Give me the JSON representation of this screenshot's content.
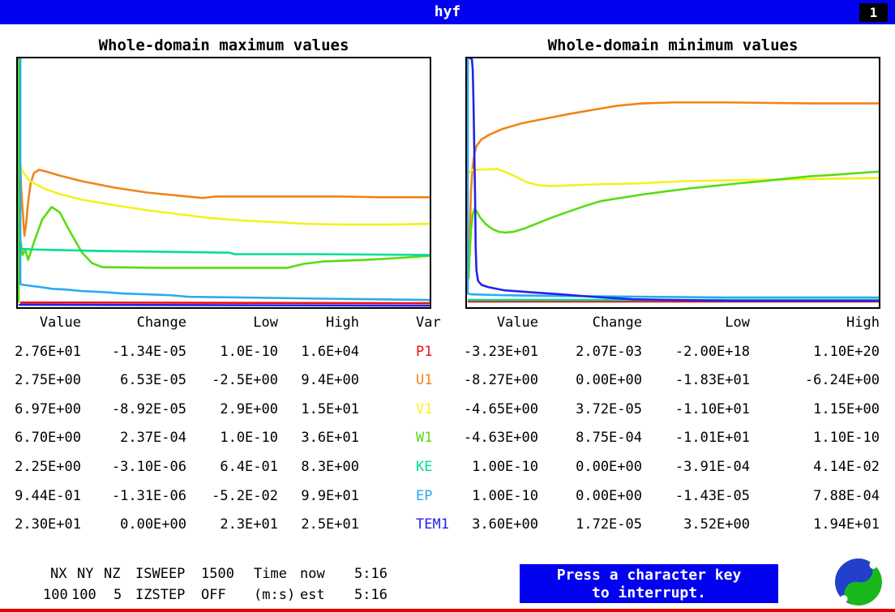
{
  "title_bar": {
    "title": "hyf",
    "page_indicator": "1"
  },
  "charts": [
    {
      "title": "Whole-domain maximum values"
    },
    {
      "title": "Whole-domain minimum values"
    }
  ],
  "table_headers": [
    "Value",
    "Change",
    "Low",
    "High"
  ],
  "var_header": "Var",
  "variables": [
    {
      "name": "P1",
      "color": "#ee1111"
    },
    {
      "name": "U1",
      "color": "#f08418"
    },
    {
      "name": "V1",
      "color": "#f2f21c"
    },
    {
      "name": "W1",
      "color": "#55dd11"
    },
    {
      "name": "KE",
      "color": "#00dd94"
    },
    {
      "name": "EP",
      "color": "#28aaf0"
    },
    {
      "name": "TEM1",
      "color": "#2222ee"
    }
  ],
  "max_table": {
    "rows": [
      [
        "2.76E+01",
        "-1.34E-05",
        "1.0E-10",
        "1.6E+04"
      ],
      [
        "2.75E+00",
        "6.53E-05",
        "-2.5E+00",
        "9.4E+00"
      ],
      [
        "6.97E+00",
        "-8.92E-05",
        "2.9E+00",
        "1.5E+01"
      ],
      [
        "6.70E+00",
        "2.37E-04",
        "1.0E-10",
        "3.6E+01"
      ],
      [
        "2.25E+00",
        "-3.10E-06",
        "6.4E-01",
        "8.3E+00"
      ],
      [
        "9.44E-01",
        "-1.31E-06",
        "-5.2E-02",
        "9.9E+01"
      ],
      [
        "2.30E+01",
        "0.00E+00",
        "2.3E+01",
        "2.5E+01"
      ]
    ]
  },
  "min_table": {
    "rows": [
      [
        "-3.23E+01",
        "2.07E-03",
        "-2.00E+18",
        "1.10E+20"
      ],
      [
        "-8.27E+00",
        "0.00E+00",
        "-1.83E+01",
        "-6.24E+00"
      ],
      [
        "-4.65E+00",
        "3.72E-05",
        "-1.10E+01",
        "1.15E+00"
      ],
      [
        "-4.63E+00",
        "8.75E-04",
        "-1.01E+01",
        "1.10E-10"
      ],
      [
        "1.00E-10",
        "0.00E+00",
        "-3.91E-04",
        "4.14E-02"
      ],
      [
        "1.00E-10",
        "0.00E+00",
        "-1.43E-05",
        "7.88E-04"
      ],
      [
        "3.60E+00",
        "1.72E-05",
        "3.52E+00",
        "1.94E+01"
      ]
    ]
  },
  "status": {
    "nx_label": "NX",
    "ny_label": "NY",
    "nz_label": "NZ",
    "isweep_label": "ISWEEP",
    "isweep_value": "1500",
    "time_label": "Time",
    "now_label": "now",
    "time_now": "5:16",
    "nx_value": "100",
    "ny_value": "100",
    "nz_value": "5",
    "izstep_label": "IZSTEP",
    "izstep_value": "OFF",
    "ms_label": "(m:s)",
    "est_label": "est",
    "time_est": "5:16"
  },
  "interrupt_box": {
    "line1": "Press a character key",
    "line2": "to interrupt."
  },
  "colors": {
    "titlebar_bg": "#0202ee",
    "interrupt_bg": "#0202f0",
    "bottom_line": "#e60000",
    "logo_blue": "#2240cc",
    "logo_green": "#18b81c"
  },
  "chart_data": [
    {
      "type": "line",
      "title": "Whole-domain maximum values",
      "note": "each variable normalized to its own 0-1 range; x = sweep history; fractions of plot area (y=0 top)",
      "series": [
        {
          "name": "P1",
          "color": "#ee1111",
          "segments": [
            [
              [
                0.008,
                0.981
              ],
              [
                0.998,
                0.984
              ]
            ]
          ]
        },
        {
          "name": "U1",
          "color": "#f08418",
          "segments": [
            [
              [
                0.006,
                0.432
              ],
              [
                0.008,
                0.519
              ],
              [
                0.012,
                0.616
              ],
              [
                0.016,
                0.713
              ],
              [
                0.02,
                0.668
              ],
              [
                0.025,
                0.577
              ],
              [
                0.031,
                0.503
              ],
              [
                0.039,
                0.461
              ],
              [
                0.051,
                0.448
              ],
              [
                0.07,
                0.455
              ],
              [
                0.102,
                0.471
              ],
              [
                0.156,
                0.494
              ],
              [
                0.234,
                0.519
              ],
              [
                0.313,
                0.539
              ],
              [
                0.391,
                0.552
              ],
              [
                0.449,
                0.561
              ],
              [
                0.479,
                0.555
              ],
              [
                0.547,
                0.555
              ],
              [
                0.664,
                0.555
              ],
              [
                0.781,
                0.555
              ],
              [
                0.879,
                0.558
              ],
              [
                0.998,
                0.558
              ]
            ]
          ]
        },
        {
          "name": "V1",
          "color": "#f2f21c",
          "segments": [
            [
              [
                0.002,
                0.413
              ],
              [
                0.012,
                0.455
              ],
              [
                0.027,
                0.49
              ],
              [
                0.063,
                0.523
              ],
              [
                0.102,
                0.545
              ],
              [
                0.156,
                0.568
              ],
              [
                0.234,
                0.59
              ],
              [
                0.313,
                0.61
              ],
              [
                0.391,
                0.626
              ],
              [
                0.469,
                0.642
              ],
              [
                0.547,
                0.652
              ],
              [
                0.625,
                0.658
              ],
              [
                0.703,
                0.665
              ],
              [
                0.801,
                0.668
              ],
              [
                0.898,
                0.668
              ],
              [
                0.998,
                0.665
              ]
            ]
          ]
        },
        {
          "name": "W1",
          "color": "#55dd11",
          "segments": [
            [
              [
                0.002,
                0.0
              ],
              [
                0.002,
                0.977
              ]
            ],
            [
              [
                0.004,
                0.706
              ],
              [
                0.012,
                0.79
              ],
              [
                0.018,
                0.768
              ],
              [
                0.025,
                0.81
              ],
              [
                0.039,
                0.739
              ],
              [
                0.059,
                0.648
              ],
              [
                0.082,
                0.597
              ],
              [
                0.102,
                0.619
              ],
              [
                0.127,
                0.697
              ],
              [
                0.156,
                0.781
              ],
              [
                0.18,
                0.823
              ],
              [
                0.205,
                0.839
              ],
              [
                0.352,
                0.842
              ],
              [
                0.547,
                0.842
              ],
              [
                0.654,
                0.842
              ],
              [
                0.693,
                0.826
              ],
              [
                0.742,
                0.816
              ],
              [
                0.84,
                0.81
              ],
              [
                0.918,
                0.803
              ],
              [
                0.998,
                0.794
              ]
            ]
          ]
        },
        {
          "name": "KE",
          "color": "#00dd94",
          "segments": [
            [
              [
                0.004,
                0.765
              ],
              [
                0.039,
                0.768
              ],
              [
                0.195,
                0.774
              ],
              [
                0.352,
                0.777
              ],
              [
                0.514,
                0.781
              ],
              [
                0.527,
                0.787
              ],
              [
                0.742,
                0.787
              ],
              [
                0.998,
                0.79
              ]
            ]
          ]
        },
        {
          "name": "EP",
          "color": "#28aaf0",
          "segments": [
            [
              [
                0.006,
                0.0
              ],
              [
                0.006,
                0.906
              ],
              [
                0.012,
                0.91
              ],
              [
                0.025,
                0.913
              ],
              [
                0.055,
                0.919
              ],
              [
                0.084,
                0.926
              ],
              [
                0.117,
                0.929
              ],
              [
                0.156,
                0.935
              ],
              [
                0.205,
                0.939
              ],
              [
                0.254,
                0.945
              ],
              [
                0.313,
                0.948
              ],
              [
                0.371,
                0.952
              ],
              [
                0.416,
                0.958
              ],
              [
                0.547,
                0.961
              ],
              [
                0.703,
                0.965
              ],
              [
                0.859,
                0.968
              ],
              [
                0.998,
                0.971
              ]
            ]
          ]
        },
        {
          "name": "TEM1",
          "color": "#2222ee",
          "segments": [
            [
              [
                0.004,
                0.99
              ],
              [
                0.998,
                0.994
              ]
            ]
          ]
        }
      ]
    },
    {
      "type": "line",
      "title": "Whole-domain minimum values",
      "note": "each variable normalized to its own 0-1 range; x = sweep history; fractions of plot area (y=0 top)",
      "series": [
        {
          "name": "P1",
          "color": "#ee1111",
          "segments": [
            [
              [
                0.004,
                0.977
              ],
              [
                1.0,
                0.977
              ]
            ]
          ]
        },
        {
          "name": "U1",
          "color": "#f08418",
          "segments": [
            [
              [
                0.006,
                0.777
              ],
              [
                0.008,
                0.642
              ],
              [
                0.01,
                0.529
              ],
              [
                0.014,
                0.432
              ],
              [
                0.018,
                0.384
              ],
              [
                0.023,
                0.352
              ],
              [
                0.035,
                0.326
              ],
              [
                0.055,
                0.306
              ],
              [
                0.086,
                0.284
              ],
              [
                0.133,
                0.261
              ],
              [
                0.191,
                0.242
              ],
              [
                0.25,
                0.223
              ],
              [
                0.309,
                0.206
              ],
              [
                0.367,
                0.19
              ],
              [
                0.426,
                0.181
              ],
              [
                0.5,
                0.177
              ],
              [
                0.637,
                0.177
              ],
              [
                0.832,
                0.181
              ],
              [
                1.0,
                0.181
              ]
            ]
          ]
        },
        {
          "name": "V1",
          "color": "#f2f21c",
          "segments": [
            [
              [
                0.006,
                0.458
              ],
              [
                0.014,
                0.448
              ],
              [
                0.074,
                0.445
              ],
              [
                0.086,
                0.452
              ],
              [
                0.113,
                0.471
              ],
              [
                0.145,
                0.497
              ],
              [
                0.172,
                0.51
              ],
              [
                0.211,
                0.513
              ],
              [
                0.256,
                0.51
              ],
              [
                0.314,
                0.506
              ],
              [
                0.412,
                0.503
              ],
              [
                0.52,
                0.494
              ],
              [
                0.637,
                0.49
              ],
              [
                0.754,
                0.487
              ],
              [
                0.871,
                0.484
              ],
              [
                1.0,
                0.481
              ]
            ]
          ]
        },
        {
          "name": "W1",
          "color": "#55dd11",
          "segments": [
            [
              [
                0.002,
                0.003
              ],
              [
                0.002,
                0.035
              ]
            ],
            [
              [
                0.004,
                0.884
              ],
              [
                0.006,
                0.803
              ],
              [
                0.01,
                0.69
              ],
              [
                0.014,
                0.626
              ],
              [
                0.018,
                0.606
              ],
              [
                0.023,
                0.613
              ],
              [
                0.033,
                0.642
              ],
              [
                0.047,
                0.668
              ],
              [
                0.063,
                0.687
              ],
              [
                0.078,
                0.697
              ],
              [
                0.094,
                0.7
              ],
              [
                0.113,
                0.697
              ],
              [
                0.139,
                0.684
              ],
              [
                0.168,
                0.665
              ],
              [
                0.207,
                0.639
              ],
              [
                0.246,
                0.616
              ],
              [
                0.285,
                0.594
              ],
              [
                0.324,
                0.574
              ],
              [
                0.373,
                0.561
              ],
              [
                0.422,
                0.548
              ],
              [
                0.48,
                0.535
              ],
              [
                0.539,
                0.523
              ],
              [
                0.598,
                0.513
              ],
              [
                0.656,
                0.503
              ],
              [
                0.715,
                0.494
              ],
              [
                0.773,
                0.484
              ],
              [
                0.832,
                0.474
              ],
              [
                0.891,
                0.468
              ],
              [
                0.949,
                0.461
              ],
              [
                1.0,
                0.455
              ]
            ]
          ]
        },
        {
          "name": "KE",
          "color": "#00dd94",
          "segments": [
            [
              [
                0.004,
                0.971
              ],
              [
                1.0,
                0.971
              ]
            ]
          ]
        },
        {
          "name": "EP",
          "color": "#28aaf0",
          "segments": [
            [
              [
                0.002,
                0.0
              ],
              [
                0.002,
                0.945
              ],
              [
                0.008,
                0.948
              ],
              [
                0.09,
                0.952
              ],
              [
                0.246,
                0.955
              ],
              [
                0.441,
                0.958
              ],
              [
                0.637,
                0.961
              ],
              [
                1.0,
                0.961
              ]
            ]
          ]
        },
        {
          "name": "TEM1",
          "color": "#2222ee",
          "segments": [
            [
              [
                0.008,
                0.0
              ],
              [
                0.012,
                0.003
              ],
              [
                0.014,
                0.045
              ],
              [
                0.016,
                0.19
              ],
              [
                0.018,
                0.384
              ],
              [
                0.02,
                0.577
              ],
              [
                0.021,
                0.755
              ],
              [
                0.023,
                0.852
              ],
              [
                0.027,
                0.894
              ],
              [
                0.035,
                0.91
              ],
              [
                0.051,
                0.919
              ],
              [
                0.09,
                0.932
              ],
              [
                0.148,
                0.939
              ],
              [
                0.227,
                0.948
              ],
              [
                0.305,
                0.958
              ],
              [
                0.402,
                0.968
              ],
              [
                0.5,
                0.971
              ],
              [
                0.637,
                0.974
              ],
              [
                0.832,
                0.974
              ],
              [
                1.0,
                0.974
              ]
            ]
          ]
        }
      ]
    }
  ]
}
